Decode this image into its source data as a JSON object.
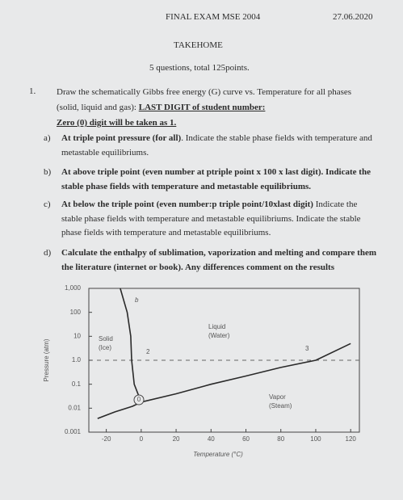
{
  "header": {
    "title": "FINAL EXAM MSE 2004",
    "date": "27.06.2020",
    "subtitle": "TAKEHOME",
    "summary": "5 questions, total 125points."
  },
  "question": {
    "number": "1.",
    "text": "Draw the schematically Gibbs free energy (G) curve vs. Temperature for all phases (solid, liquid and gas):",
    "emphasis": "LAST DIGIT of student number:",
    "note": "Zero (0) digit will be taken as 1.",
    "items": [
      {
        "label": "a)",
        "bold": "At triple point pressure (for all)",
        "text": ". Indicate the stable phase fields with temperature and metastable equilibriums."
      },
      {
        "label": "b)",
        "bold": "At above triple point (even number at ptriple point x 100 x last digit). Indicate the stable phase fields with temperature and metastable equilibriums."
      },
      {
        "label": "c)",
        "bold": "At below the triple point (even number:p triple point/10xlast digit)",
        "text": " Indicate the stable phase fields with temperature and metastable equilibriums. Indicate the stable phase fields with temperature and metastable equilibriums."
      },
      {
        "label": "d)",
        "bold": "Calculate the enthalpy of sublimation, vaporization and melting and compare them the literature (internet or book). Any differences comment on the results"
      }
    ]
  },
  "chart_data": {
    "type": "line",
    "x_label": "Temperature (°C)",
    "y_label": "Pressure (atm)",
    "log_y": true,
    "xlim": [
      -30,
      125
    ],
    "ylim": [
      0.001,
      1000
    ],
    "xticks": [
      -20,
      0,
      20,
      40,
      60,
      80,
      100,
      120
    ],
    "yticks": [
      {
        "value": 1000,
        "label": "1,000"
      },
      100,
      10,
      {
        "value": 1,
        "label": "1.0"
      },
      0.1,
      0.01,
      0.001
    ],
    "hline": 1,
    "series": [
      {
        "color": "#2a2a2a",
        "x": [
          -12,
          -8,
          -6,
          -5.5,
          -4,
          0
        ],
        "values": [
          1000,
          100,
          10,
          1,
          0.1,
          0.018
        ]
      },
      {
        "color": "#2a2a2a",
        "x": [
          -25,
          -15,
          -5,
          0
        ],
        "values": [
          0.0037,
          0.007,
          0.012,
          0.018
        ]
      },
      {
        "color": "#2a2a2a",
        "x": [
          0,
          20,
          40,
          60,
          80,
          100,
          120
        ],
        "values": [
          0.018,
          0.04,
          0.1,
          0.22,
          0.5,
          1,
          5
        ]
      }
    ],
    "annotations": [
      "Solid",
      "(Ice)",
      "Liquid",
      "(Water)",
      "Vapor",
      "(Steam)",
      "b",
      "2",
      "3",
      "0"
    ]
  }
}
